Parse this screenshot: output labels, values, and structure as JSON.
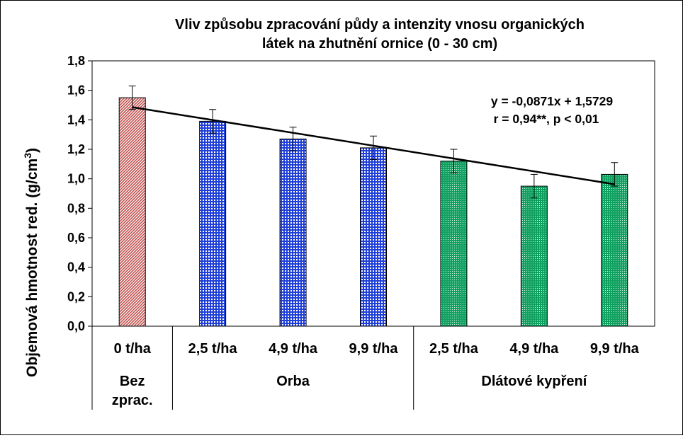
{
  "chart_data": {
    "type": "bar",
    "title": "Vliv způsobu zpracování půdy a intenzity vnosu organických látek na zhutnění ornice (0 - 30 cm)",
    "title_lines": [
      "Vliv způsobu zpracování půdy a intenzity vnosu organických",
      "látek na zhutnění ornice (0 - 30 cm)"
    ],
    "ylabel": "Objemová hmotnost red. (g/cm",
    "ylabel_superscript": "3",
    "ylabel_close": ")",
    "xlabel": "",
    "ylim": [
      0,
      1.8
    ],
    "ytick_step": 0.2,
    "ytick_labels": [
      "0,0",
      "0,2",
      "0,4",
      "0,6",
      "0,8",
      "1,0",
      "1,2",
      "1,4",
      "1,6",
      "1,8"
    ],
    "categories": [
      "0 t/ha",
      "2,5 t/ha",
      "4,9 t/ha",
      "9,9 t/ha",
      "2,5 t/ha",
      "4,9 t/ha",
      "9,9 t/ha"
    ],
    "values": [
      1.55,
      1.39,
      1.27,
      1.21,
      1.12,
      0.95,
      1.03
    ],
    "errors": [
      0.08,
      0.08,
      0.08,
      0.08,
      0.08,
      0.08,
      0.08
    ],
    "bar_colors": [
      "#c0504d",
      "#1f3fd8",
      "#1f3fd8",
      "#1f3fd8",
      "#10a060",
      "#10a060",
      "#10a060"
    ],
    "groups": [
      {
        "label": "Bez zprac.",
        "label_lines": [
          "Bez",
          "zprac."
        ],
        "start": 0,
        "count": 1
      },
      {
        "label": "Orba",
        "label_lines": [
          "Orba"
        ],
        "start": 1,
        "count": 3
      },
      {
        "label": "Dlátové kypření",
        "label_lines": [
          "Dlátové kypření"
        ],
        "start": 4,
        "count": 3
      }
    ],
    "trendline": {
      "slope": -0.0871,
      "intercept": 1.5729,
      "equation": "y = -0,0871x + 1,5729",
      "stats": "r = 0,94**, p < 0,01"
    },
    "grid": false,
    "legend": "none"
  }
}
